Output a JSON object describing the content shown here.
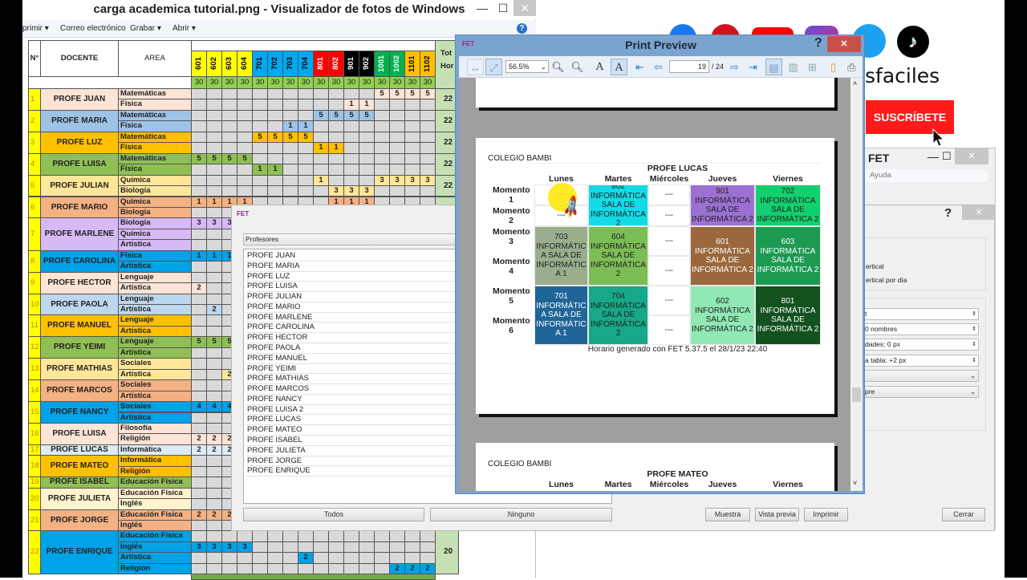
{
  "viewer": {
    "title": "carga academica tutorial.png - Visualizador de fotos de Windows",
    "toolbar": [
      "primir ▾",
      "Correo electrónico",
      "Grabar ▾",
      "Abrir ▾"
    ],
    "minimize": "—",
    "maximize": "☐",
    "close": "✕",
    "help": "?"
  },
  "sheet": {
    "headers": {
      "n": "N°",
      "docente": "DOCENTE",
      "area": "AREA",
      "total1": "Tot",
      "total2": "Hor"
    },
    "grades": [
      {
        "g": "601",
        "color": "#ffff00",
        "fg": "#000"
      },
      {
        "g": "602",
        "color": "#ffff00",
        "fg": "#000"
      },
      {
        "g": "603",
        "color": "#ffff00",
        "fg": "#000"
      },
      {
        "g": "604",
        "color": "#ffff00",
        "fg": "#000"
      },
      {
        "g": "701",
        "color": "#00a8f0",
        "fg": "#000"
      },
      {
        "g": "702",
        "color": "#00a8f0",
        "fg": "#000"
      },
      {
        "g": "703",
        "color": "#00a8f0",
        "fg": "#000"
      },
      {
        "g": "704",
        "color": "#00a8f0",
        "fg": "#000"
      },
      {
        "g": "801",
        "color": "#ff0000",
        "fg": "#fff"
      },
      {
        "g": "802",
        "color": "#ff0000",
        "fg": "#fff"
      },
      {
        "g": "901",
        "color": "#000000",
        "fg": "#fff"
      },
      {
        "g": "902",
        "color": "#000000",
        "fg": "#fff"
      },
      {
        "g": "1001",
        "color": "#00b050",
        "fg": "#fff"
      },
      {
        "g": "1002",
        "color": "#00b050",
        "fg": "#fff"
      },
      {
        "g": "1101",
        "color": "#ffc000",
        "fg": "#000"
      },
      {
        "g": "1102",
        "color": "#ffc000",
        "fg": "#000"
      }
    ],
    "hours_per_grade": "30",
    "teachers": [
      {
        "n": "1",
        "name": "PROFE JUAN",
        "color": "#fce4d6",
        "total": "22",
        "areas": [
          {
            "a": "Matemáticas",
            "v": {
              "1001": "5",
              "1002": "5",
              "1101": "5",
              "1102": "5"
            }
          },
          {
            "a": "Física",
            "v": {
              "901": "1",
              "902": "1"
            }
          }
        ]
      },
      {
        "n": "2",
        "name": "PROFE MARIA",
        "color": "#9dc3e6",
        "total": "22",
        "areas": [
          {
            "a": "Matemáticas",
            "v": {
              "801": "5",
              "802": "5",
              "901": "5",
              "902": "5"
            }
          },
          {
            "a": "Física",
            "v": {
              "703": "1",
              "704": "1"
            }
          }
        ]
      },
      {
        "n": "3",
        "name": "PROFE LUZ",
        "color": "#ffc000",
        "total": "22",
        "areas": [
          {
            "a": "Matemáticas",
            "v": {
              "701": "5",
              "702": "5",
              "703": "5",
              "704": "5"
            }
          },
          {
            "a": "Física",
            "v": {
              "801": "1",
              "802": "1"
            }
          }
        ]
      },
      {
        "n": "4",
        "name": "PROFE LUISA",
        "color": "#8fbf55",
        "total": "22",
        "areas": [
          {
            "a": "Matemáticas",
            "v": {
              "601": "5",
              "602": "5",
              "603": "5",
              "604": "5"
            }
          },
          {
            "a": "Física",
            "v": {
              "701": "1",
              "702": "1"
            }
          }
        ]
      },
      {
        "n": "5",
        "name": "PROFE JULIAN",
        "color": "#ffe699",
        "total": "22",
        "areas": [
          {
            "a": "Química",
            "v": {
              "801": "1",
              "1001": "3",
              "1002": "3",
              "1101": "3",
              "1102": "3"
            }
          },
          {
            "a": "Biología",
            "v": {
              "802": "3",
              "901": "3",
              "902": "3"
            }
          }
        ]
      },
      {
        "n": "6",
        "name": "PROFE MARIO",
        "color": "#f4b183",
        "areas": [
          {
            "a": "Química",
            "v": {
              "601": "1",
              "602": "1",
              "603": "1",
              "604": "1",
              "802": "1",
              "901": "1",
              "902": "1"
            }
          },
          {
            "a": "Biología",
            "v": {}
          }
        ]
      },
      {
        "n": "7",
        "name": "PROFE MARLENE",
        "color": "#d7b9f5",
        "areas": [
          {
            "a": "Biología",
            "v": {
              "601": "3",
              "602": "3",
              "603": "3"
            }
          },
          {
            "a": "Química",
            "v": {}
          },
          {
            "a": "Artística",
            "v": {}
          }
        ]
      },
      {
        "n": "8",
        "name": "PROFE CAROLINA",
        "color": "#00a2e8",
        "areas": [
          {
            "a": "Física",
            "v": {
              "601": "1",
              "602": "1",
              "603": "1"
            }
          },
          {
            "a": "Artística",
            "v": {}
          }
        ]
      },
      {
        "n": "9",
        "name": "PROFE HECTOR",
        "color": "#fce4d6",
        "areas": [
          {
            "a": "Lenguaje",
            "v": {}
          },
          {
            "a": "Artística",
            "v": {
              "601": "2"
            }
          }
        ]
      },
      {
        "n": "10",
        "name": "PROFE PAOLA",
        "color": "#bdd7ee",
        "areas": [
          {
            "a": "Lenguaje",
            "v": {}
          },
          {
            "a": "Artística",
            "v": {
              "602": "2"
            }
          }
        ]
      },
      {
        "n": "11",
        "name": "PROFE MANUEL",
        "color": "#ffc000",
        "areas": [
          {
            "a": "Lenguaje",
            "v": {}
          },
          {
            "a": "Artística",
            "v": {}
          }
        ]
      },
      {
        "n": "12",
        "name": "PROFE YEIMI",
        "color": "#8fbf55",
        "areas": [
          {
            "a": "Lenguaje",
            "v": {
              "601": "5",
              "602": "5",
              "603": "5"
            }
          },
          {
            "a": "Artística",
            "v": {}
          }
        ]
      },
      {
        "n": "13",
        "name": "PROFE MATHIAS",
        "color": "#ffe699",
        "areas": [
          {
            "a": "Sociales",
            "v": {}
          },
          {
            "a": "Artística",
            "v": {
              "603": "2"
            }
          }
        ]
      },
      {
        "n": "14",
        "name": "PROFE MARCOS",
        "color": "#f4b183",
        "areas": [
          {
            "a": "Sociales",
            "v": {}
          },
          {
            "a": "Artística",
            "v": {}
          }
        ]
      },
      {
        "n": "15",
        "name": "PROFE NANCY",
        "color": "#00a2e8",
        "areas": [
          {
            "a": "Sociales",
            "v": {
              "601": "4",
              "602": "4",
              "603": "4"
            }
          },
          {
            "a": "Artística",
            "v": {}
          }
        ]
      },
      {
        "n": "16",
        "name": "PROFE LUISA",
        "color": "#fce4d6",
        "areas": [
          {
            "a": "Filosofía",
            "v": {}
          },
          {
            "a": "Religión",
            "v": {
              "601": "2",
              "602": "2",
              "603": "2"
            }
          }
        ]
      },
      {
        "n": "17",
        "name": "PROFE LUCAS",
        "color": "#ddebf7",
        "areas": [
          {
            "a": "Informática",
            "v": {
              "601": "2",
              "602": "2",
              "603": "2"
            }
          }
        ]
      },
      {
        "n": "18",
        "name": "PROFE MATEO",
        "color": "#ffc000",
        "areas": [
          {
            "a": "Informática",
            "v": {}
          },
          {
            "a": "Religión",
            "v": {}
          }
        ]
      },
      {
        "n": "19",
        "name": "PROFE ISABEL",
        "color": "#8fbf55",
        "areas": [
          {
            "a": "Educación Física",
            "v": {}
          }
        ]
      },
      {
        "n": "20",
        "name": "PROFE JULIETA",
        "color": "#fff2cc",
        "areas": [
          {
            "a": "Educación Física",
            "v": {}
          },
          {
            "a": "Inglés",
            "v": {}
          }
        ]
      },
      {
        "n": "21",
        "name": "PROFE JORGE",
        "color": "#f4b183",
        "areas": [
          {
            "a": "Educación Física",
            "v": {
              "601": "2",
              "602": "2",
              "603": "2"
            }
          },
          {
            "a": "Inglés",
            "v": {}
          }
        ]
      },
      {
        "n": "22",
        "name": "PROFE ENRIQUE",
        "color": "#00a2e8",
        "total": "20",
        "areas": [
          {
            "a": "Educación Física",
            "v": {}
          },
          {
            "a": "Inglés",
            "v": {
              "601": "3",
              "602": "3",
              "603": "3",
              "604": "3"
            }
          },
          {
            "a": "Artística",
            "v": {
              "704": "2"
            }
          },
          {
            "a": "Religión",
            "v": {
              "1002": "2",
              "1101": "2",
              "1102": "2"
            }
          }
        ]
      }
    ]
  },
  "social": {
    "handle": "sfaciles",
    "subscribe": "SUSCRÍBETE",
    "icons": [
      "facebook-icon",
      "pinterest-icon",
      "youtube-icon",
      "instagram-icon",
      "twitter-icon",
      "tiktok-icon"
    ]
  },
  "fet_main": {
    "title": "FET",
    "menu_help": "Ayuda",
    "minimize": "—",
    "maximize": "☐",
    "close": "✕"
  },
  "fet_dialog": {
    "help": "?",
    "close": "✕",
    "filter": "Profesores",
    "teachers": [
      "PROFE JUAN",
      "PROFE MARIA",
      "PROFE LUZ",
      "PROFE LUISA",
      "PROFE JULIAN",
      "PROFE MARIO",
      "PROFE MARLENE",
      "PROFE CAROLINA",
      "PROFE HECTOR",
      "PROFE PAOLA",
      "PROFE MANUEL",
      "PROFE YEIMI",
      "PROFE MATHIAS",
      "PROFE MARCOS",
      "PROFE NANCY",
      "PROFE LUISA 2",
      "PROFE LUCAS",
      "PROFE MATEO",
      "PROFE ISABEL",
      "PROFE JULIETA",
      "PROFE JORGE",
      "PROFE ENRIQUE"
    ],
    "all": "Todos",
    "none": "Ninguno",
    "sample": "Muestra",
    "preview": "Vista previa",
    "print": "Imprimir",
    "close_btn": "Cerrar",
    "radio1": "ertical",
    "radio2": "ertical por día",
    "spin1": "t",
    "spin2": "0 nombres",
    "spin3": "dades: 0 px",
    "spin4": "a tabla: +2 px",
    "combo2": "pre"
  },
  "print_preview": {
    "title": "Print Preview",
    "help": "?",
    "close": "✕",
    "zoom": "56.5%",
    "page": "19",
    "page_total": "/ 24",
    "school": "COLEGIO BAMBI",
    "teacher": "PROFE LUCAS",
    "next_teacher": "PROFE MATEO",
    "days": [
      "Lunes",
      "Martes",
      "Miércoles",
      "Jueves",
      "Viernes"
    ],
    "moments": [
      "Momento 1",
      "Momento 2",
      "Momento 3",
      "Momento 4",
      "Momento 5",
      "Momento 6"
    ],
    "cells": [
      [
        {
          "s": 0,
          "n": 1,
          "t": "---",
          "bg": "#ffffff",
          "fg": "#222"
        },
        {
          "s": 1,
          "n": 1,
          "t": "---",
          "bg": "#ffffff",
          "fg": "#222"
        },
        {
          "s": 2,
          "n": 2,
          "t": "703 INFORMÁTICA SALA DE INFORMÁTICA 1",
          "bg": "#9aae8e",
          "fg": "#222"
        },
        {
          "s": 4,
          "n": 2,
          "t": "701 INFORMÁTICA SALA DE INFORMÁTICA 1",
          "bg": "#1f6598",
          "fg": "#fff"
        }
      ],
      [
        {
          "s": 0,
          "n": 2,
          "t": "802 INFORMÁTICA SALA DE INFORMÁTICA 2",
          "bg": "#12dbe8",
          "fg": "#222"
        },
        {
          "s": 2,
          "n": 2,
          "t": "604 INFORMÁTICA SALA DE INFORMÁTICA 2",
          "bg": "#7dbd55",
          "fg": "#222"
        },
        {
          "s": 4,
          "n": 2,
          "t": "704 INFORMÁTICA SALA DE INFORMÁTICA 2",
          "bg": "#16a888",
          "fg": "#222"
        }
      ],
      [
        {
          "s": 0,
          "n": 1,
          "t": "---",
          "bg": "#ffffff",
          "fg": "#222"
        },
        {
          "s": 1,
          "n": 1,
          "t": "---",
          "bg": "#ffffff",
          "fg": "#222"
        },
        {
          "s": 2,
          "n": 1,
          "t": "---",
          "bg": "#ffffff",
          "fg": "#222"
        },
        {
          "s": 3,
          "n": 1,
          "t": "---",
          "bg": "#ffffff",
          "fg": "#222"
        },
        {
          "s": 4,
          "n": 1,
          "t": "---",
          "bg": "#ffffff",
          "fg": "#222"
        },
        {
          "s": 5,
          "n": 1,
          "t": "---",
          "bg": "#ffffff",
          "fg": "#222"
        }
      ],
      [
        {
          "s": 0,
          "n": 2,
          "t": "901 INFORMÁTICA SALA DE INFORMÁTICA 2",
          "bg": "#9c70d2",
          "fg": "#222"
        },
        {
          "s": 2,
          "n": 2,
          "t": "601 INFORMÁTICA SALA DE INFORMÁTICA 2",
          "bg": "#9a683c",
          "fg": "#fff"
        },
        {
          "s": 4,
          "n": 2,
          "t": "602 INFORMÁTICA SALA DE INFORMÁTICA 2",
          "bg": "#90e8b4",
          "fg": "#222"
        }
      ],
      [
        {
          "s": 0,
          "n": 2,
          "t": "702 INFORMÁTICA SALA DE INFORMÁTICA 2",
          "bg": "#12d06e",
          "fg": "#222"
        },
        {
          "s": 2,
          "n": 2,
          "t": "603 INFORMÁTICA SALA DE INFORMÁTICA 2",
          "bg": "#1c9a52",
          "fg": "#fff"
        },
        {
          "s": 4,
          "n": 2,
          "t": "801 INFORMÁTICA SALA DE INFORMÁTICA 2",
          "bg": "#13511f",
          "fg": "#fff"
        }
      ]
    ],
    "footer": "Horario generado con FET 5.37.5 el 28/1/23 22:40"
  }
}
